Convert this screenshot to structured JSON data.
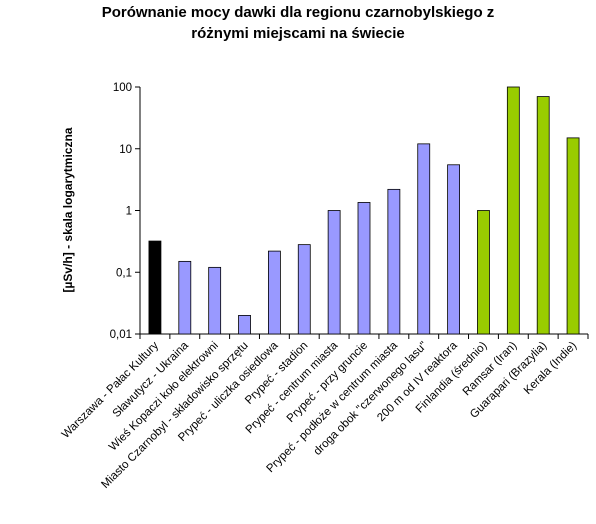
{
  "chart_data": {
    "type": "bar",
    "title_lines": [
      "Porównanie mocy dawki dla regionu czarnobylskiego z",
      "różnymi miejscami na świecie"
    ],
    "xlabel": "",
    "ylabel": "[µSv/h] - skala logarytmiczna",
    "yscale": "log",
    "ylim": [
      0.01,
      100
    ],
    "yticks": [
      {
        "value": 0.01,
        "label": "0,01"
      },
      {
        "value": 0.1,
        "label": "0,1"
      },
      {
        "value": 1,
        "label": "1"
      },
      {
        "value": 10,
        "label": "10"
      },
      {
        "value": 100,
        "label": "100"
      }
    ],
    "grid": false,
    "legend": "none",
    "colors": {
      "reference": "#000000",
      "chernobyl": "#9999FF",
      "world": "#99CC00"
    },
    "categories": [
      "Warszawa - Pałac Kultury",
      "Sławutycz - Ukraina",
      "Wieś Kopaczi koło elektrowni",
      "Miasto Czarnobyl - składowisko sprzętu",
      "Prypeć - uliczka osiedlowa",
      "Prypeć - stadion",
      "Prypeć - centrum miasta",
      "Prypeć - przy gruncie",
      "Prypeć - podłoże w centrum miasta",
      "droga obok \"czerwonego lasu\"",
      "200 m od IV reaktora",
      "Finlandia (średnio)",
      "Ramsar (Iran)",
      "Guarapari (Brazylia)",
      "Kerala (Indie)"
    ],
    "values": [
      0.32,
      0.15,
      0.12,
      0.02,
      0.22,
      0.28,
      1.0,
      1.35,
      2.2,
      12,
      5.5,
      1.0,
      100,
      70,
      15
    ],
    "groups": [
      "reference",
      "chernobyl",
      "chernobyl",
      "chernobyl",
      "chernobyl",
      "chernobyl",
      "chernobyl",
      "chernobyl",
      "chernobyl",
      "chernobyl",
      "chernobyl",
      "world",
      "world",
      "world",
      "world"
    ]
  }
}
